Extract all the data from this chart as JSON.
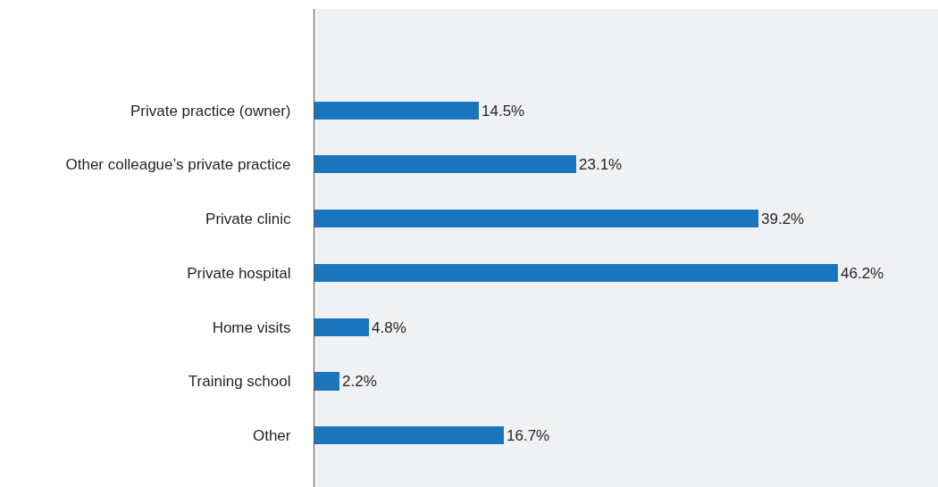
{
  "chart_data": {
    "type": "bar",
    "orientation": "horizontal",
    "categories": [
      "Private practice (owner)",
      "Other colleague’s private practice",
      "Private clinic",
      "Private hospital",
      "Home visits",
      "Training school",
      "Other"
    ],
    "values": [
      14.5,
      23.1,
      39.2,
      46.2,
      4.8,
      2.2,
      16.7
    ],
    "value_labels": [
      "14.5%",
      "23.1%",
      "39.2%",
      "46.2%",
      "4.8%",
      "2.2%",
      "16.7%"
    ],
    "color": "#1a75bc",
    "xlim": [
      0,
      55
    ],
    "tick_labels": "y"
  }
}
